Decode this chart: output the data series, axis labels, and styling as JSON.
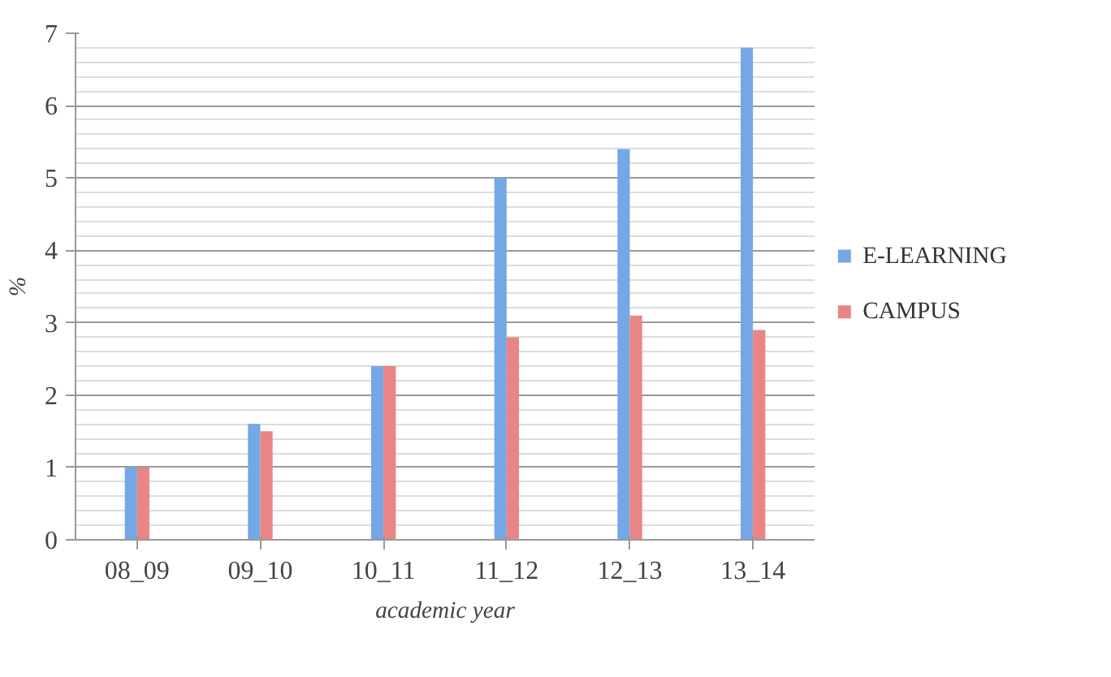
{
  "chart_data": {
    "type": "bar",
    "xlabel": "academic year",
    "ylabel": "%",
    "categories": [
      "08_09",
      "09_10",
      "10_11",
      "11_12",
      "12_13",
      "13_14"
    ],
    "series": [
      {
        "name": "E-LEARNING",
        "color": "#74a7e6",
        "values": [
          1.0,
          1.6,
          2.4,
          5.0,
          5.4,
          6.8
        ]
      },
      {
        "name": "CAMPUS",
        "color": "#e98585",
        "values": [
          1.0,
          1.5,
          2.4,
          2.8,
          3.1,
          2.9
        ]
      }
    ],
    "ylim": [
      0,
      7
    ],
    "yticks": [
      0,
      1,
      2,
      3,
      4,
      5,
      6,
      7
    ],
    "grid": "y",
    "legend": "right"
  }
}
